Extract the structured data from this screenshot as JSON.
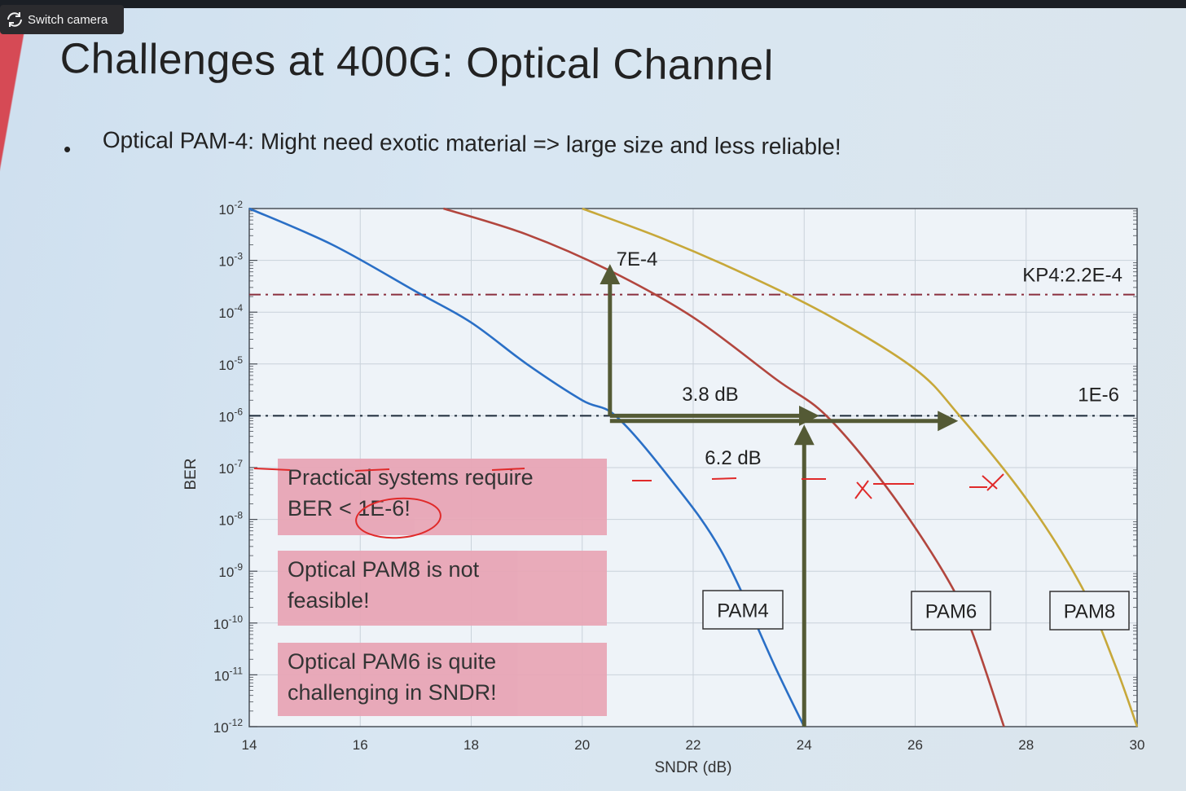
{
  "ui": {
    "switch_camera": "Switch camera",
    "title": "Challenges at 400G: Optical Channel",
    "bullet_marker": "•",
    "bullet": "Optical PAM-4: Might need exotic material => large size and less reliable!",
    "callouts": [
      {
        "line1": "Practical systems require",
        "line2": "BER < 1E-6!"
      },
      {
        "line1": "Optical PAM8 is not",
        "line2": "feasible!"
      },
      {
        "line1": "Optical PAM6 is quite",
        "line2": "challenging in SNDR!"
      }
    ]
  },
  "chart_data": {
    "type": "line",
    "xlabel": "SNDR (dB)",
    "ylabel": "BER",
    "xlim": [
      14,
      30
    ],
    "ylim_log10": [
      -12,
      -2
    ],
    "x_ticks": [
      "14",
      "16",
      "18",
      "20",
      "22",
      "24",
      "26",
      "28",
      "30"
    ],
    "y_ticks": [
      {
        "exp": -2,
        "base": "10",
        "label": "-2"
      },
      {
        "exp": -3,
        "base": "10",
        "label": "-3"
      },
      {
        "exp": -4,
        "base": "10",
        "label": "-4"
      },
      {
        "exp": -5,
        "base": "10",
        "label": "-5"
      },
      {
        "exp": -6,
        "base": "10",
        "label": "-6"
      },
      {
        "exp": -7,
        "base": "10",
        "label": "-7"
      },
      {
        "exp": -8,
        "base": "10",
        "label": "-8"
      },
      {
        "exp": -9,
        "base": "10",
        "label": "-9"
      },
      {
        "exp": -10,
        "base": "10",
        "label": "-10"
      },
      {
        "exp": -11,
        "base": "10",
        "label": "-11"
      },
      {
        "exp": -12,
        "base": "10",
        "label": "-12"
      }
    ],
    "series": [
      {
        "name": "PAM4",
        "color": "#2a6fc6",
        "points": [
          [
            14.0,
            -2.0
          ],
          [
            15.5,
            -2.7
          ],
          [
            17.0,
            -3.6
          ],
          [
            18.0,
            -4.2
          ],
          [
            19.0,
            -5.0
          ],
          [
            20.0,
            -5.7
          ],
          [
            20.6,
            -6.0
          ],
          [
            21.5,
            -7.1
          ],
          [
            22.5,
            -8.6
          ],
          [
            23.5,
            -10.9
          ],
          [
            24.0,
            -12.0
          ]
        ]
      },
      {
        "name": "PAM6",
        "color": "#b2463e",
        "points": [
          [
            17.5,
            -2.0
          ],
          [
            19.0,
            -2.5
          ],
          [
            20.5,
            -3.2
          ],
          [
            22.0,
            -4.1
          ],
          [
            23.5,
            -5.3
          ],
          [
            24.4,
            -6.0
          ],
          [
            25.5,
            -7.4
          ],
          [
            26.5,
            -9.0
          ],
          [
            27.0,
            -10.1
          ],
          [
            27.6,
            -12.0
          ]
        ]
      },
      {
        "name": "PAM8",
        "color": "#c7a83a",
        "points": [
          [
            20.0,
            -2.0
          ],
          [
            21.5,
            -2.6
          ],
          [
            23.0,
            -3.3
          ],
          [
            24.5,
            -4.1
          ],
          [
            26.0,
            -5.1
          ],
          [
            26.8,
            -6.0
          ],
          [
            28.0,
            -7.6
          ],
          [
            29.0,
            -9.3
          ],
          [
            29.6,
            -10.8
          ],
          [
            30.0,
            -12.0
          ]
        ]
      }
    ],
    "reference_lines": [
      {
        "label": "KP4:2.2E-4",
        "ber_log10": -3.66,
        "color": "#8a2f3d"
      },
      {
        "label": "1E-6",
        "ber_log10": -6.0,
        "color": "#1d2a3a"
      }
    ],
    "annotations": {
      "point_7e4": "7E-4",
      "gap_pam6": "3.8 dB",
      "gap_pam8": "6.2 dB",
      "box_pam4": "PAM4",
      "box_pam6": "PAM6",
      "box_pam8": "PAM8"
    },
    "arrows": [
      {
        "from": [
          20.5,
          -6.0
        ],
        "to": [
          20.5,
          -3.15
        ]
      },
      {
        "from": [
          20.5,
          -6.0
        ],
        "to": [
          24.2,
          -6.0
        ]
      },
      {
        "from": [
          20.5,
          -6.1
        ],
        "to": [
          26.7,
          -6.1
        ]
      },
      {
        "from": [
          24.0,
          -12.0
        ],
        "to": [
          24.0,
          -6.25
        ]
      }
    ],
    "colors": {
      "arrow": "#545a35",
      "grid": "#c9d2da",
      "frame": "#4a5058",
      "ink": "#e02a2a"
    }
  }
}
